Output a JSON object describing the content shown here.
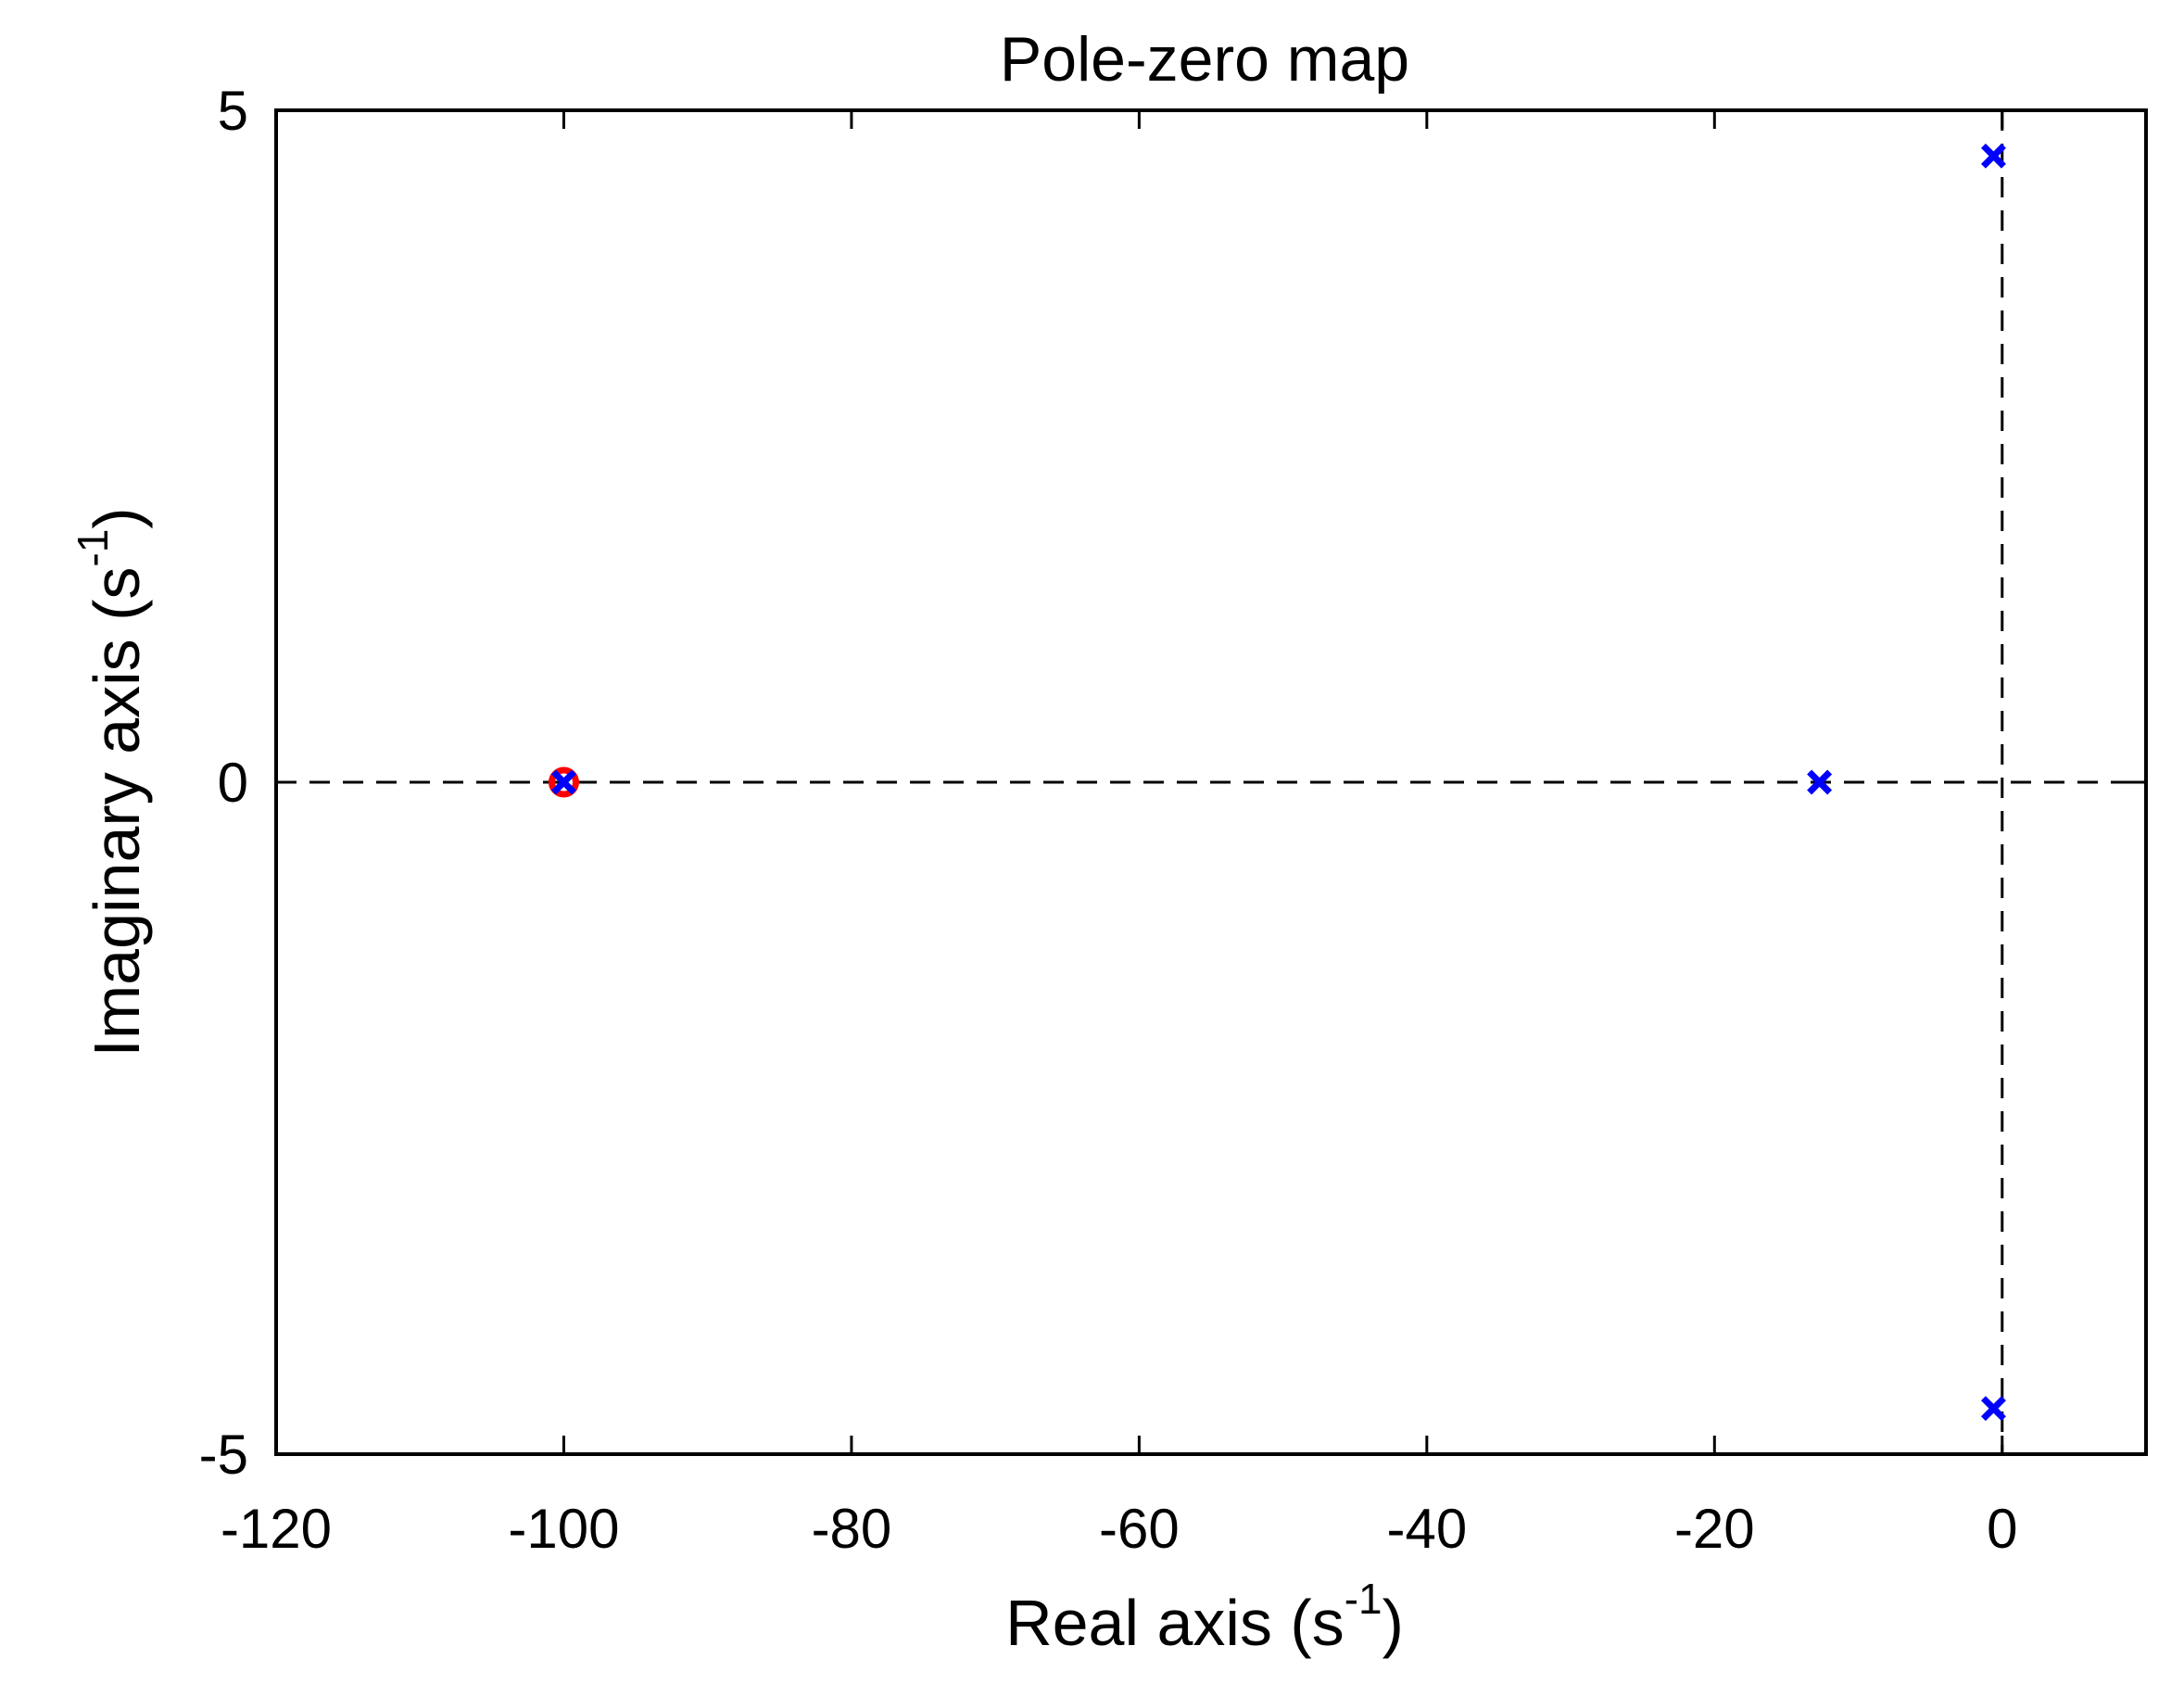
{
  "chart_data": {
    "type": "scatter",
    "title": "Pole-zero map",
    "xlabel": {
      "prefix": "Real axis (s",
      "superscript": "-1",
      "suffix": ")"
    },
    "ylabel": {
      "prefix": "Imaginary axis (s",
      "superscript": "-1",
      "suffix": ")"
    },
    "xlim": [
      -120,
      10
    ],
    "ylim": [
      -5,
      5
    ],
    "xticks": [
      -120,
      -100,
      -80,
      -60,
      -40,
      -20,
      0
    ],
    "xtick_labels": [
      "-120",
      "-100",
      "-80",
      "-60",
      "-40",
      "-20",
      "0"
    ],
    "yticks": [
      -5,
      0,
      5
    ],
    "ytick_labels": [
      "-5",
      "0",
      "5"
    ],
    "reference_lines": [
      {
        "orientation": "horizontal",
        "value": 0,
        "style": "dashed"
      },
      {
        "orientation": "vertical",
        "value": 0,
        "style": "dashed"
      }
    ],
    "series": [
      {
        "marker": "circle",
        "color": "#ff0000",
        "points": [
          {
            "x": -100,
            "y": 0
          }
        ]
      },
      {
        "marker": "x",
        "color": "#0000ff",
        "points": [
          {
            "x": -100,
            "y": 0
          },
          {
            "x": -12.7,
            "y": 0
          },
          {
            "x": -0.6,
            "y": 4.66
          },
          {
            "x": -0.6,
            "y": -4.66
          }
        ]
      }
    ],
    "grid": false,
    "legend": "none"
  }
}
